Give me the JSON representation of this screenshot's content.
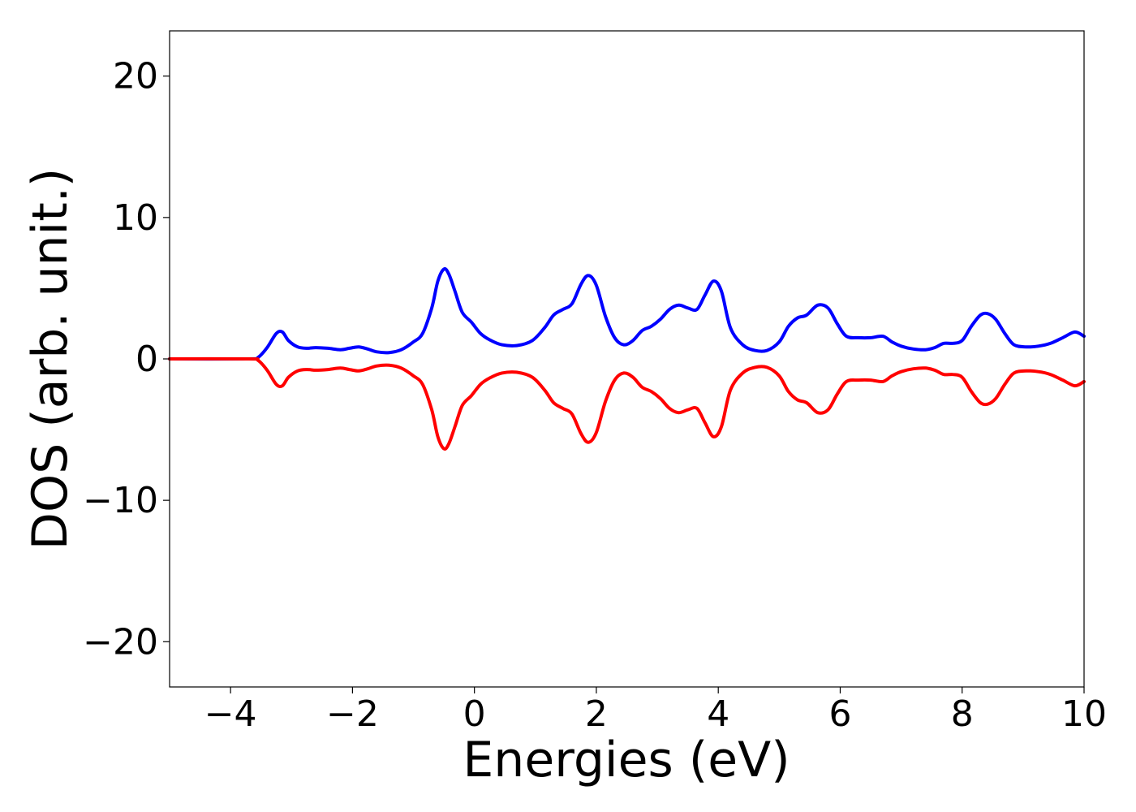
{
  "chart_data": {
    "type": "line",
    "title": "",
    "xlabel": "Energies (eV)",
    "ylabel": "DOS (arb. unit.)",
    "xlim": [
      -5,
      10
    ],
    "ylim": [
      -23.2,
      23.2
    ],
    "xticks": [
      -4,
      -2,
      0,
      2,
      4,
      6,
      8,
      10
    ],
    "xtick_labels": [
      "−4",
      "−2",
      "0",
      "2",
      "4",
      "6",
      "8",
      "10"
    ],
    "yticks": [
      -20,
      -10,
      0,
      10,
      20
    ],
    "ytick_labels": [
      "−20",
      "−10",
      "0",
      "10",
      "20"
    ],
    "grid": false,
    "series": [
      {
        "color": "#0000ff",
        "x": [
          -5.0,
          -3.7,
          -3.55,
          -3.4,
          -3.25,
          -3.15,
          -3.05,
          -2.9,
          -2.75,
          -2.6,
          -2.4,
          -2.2,
          -2.05,
          -1.9,
          -1.75,
          -1.6,
          -1.4,
          -1.2,
          -1.0,
          -0.85,
          -0.7,
          -0.6,
          -0.5,
          -0.42,
          -0.32,
          -0.2,
          -0.05,
          0.1,
          0.25,
          0.45,
          0.7,
          0.95,
          1.15,
          1.3,
          1.45,
          1.6,
          1.75,
          1.87,
          2.0,
          2.15,
          2.3,
          2.45,
          2.6,
          2.75,
          2.9,
          3.05,
          3.2,
          3.35,
          3.5,
          3.65,
          3.78,
          3.92,
          4.05,
          4.2,
          4.4,
          4.6,
          4.8,
          5.0,
          5.15,
          5.3,
          5.45,
          5.63,
          5.8,
          5.95,
          6.1,
          6.3,
          6.5,
          6.7,
          6.85,
          7.0,
          7.2,
          7.4,
          7.55,
          7.7,
          7.85,
          8.0,
          8.15,
          8.3,
          8.42,
          8.55,
          8.7,
          8.85,
          9.05,
          9.25,
          9.45,
          9.65,
          9.85,
          10.0
        ],
        "y": [
          0.0,
          0.0,
          0.1,
          0.8,
          1.8,
          1.9,
          1.3,
          0.85,
          0.75,
          0.8,
          0.75,
          0.65,
          0.75,
          0.85,
          0.7,
          0.5,
          0.45,
          0.65,
          1.2,
          1.8,
          3.6,
          5.5,
          6.35,
          6.0,
          4.8,
          3.3,
          2.6,
          1.8,
          1.35,
          1.0,
          0.95,
          1.3,
          2.2,
          3.1,
          3.5,
          3.9,
          5.3,
          5.9,
          5.2,
          3.0,
          1.5,
          1.0,
          1.3,
          2.0,
          2.3,
          2.8,
          3.5,
          3.8,
          3.6,
          3.5,
          4.5,
          5.5,
          4.8,
          2.2,
          1.0,
          0.6,
          0.6,
          1.2,
          2.3,
          2.9,
          3.1,
          3.8,
          3.6,
          2.5,
          1.6,
          1.5,
          1.5,
          1.6,
          1.2,
          0.9,
          0.7,
          0.65,
          0.8,
          1.1,
          1.1,
          1.3,
          2.3,
          3.1,
          3.2,
          2.8,
          1.8,
          1.0,
          0.85,
          0.9,
          1.1,
          1.5,
          1.9,
          1.6
        ]
      },
      {
        "color": "#ff0000",
        "x": [
          -5.0,
          -3.7,
          -3.55,
          -3.4,
          -3.25,
          -3.15,
          -3.05,
          -2.9,
          -2.75,
          -2.6,
          -2.4,
          -2.2,
          -2.05,
          -1.9,
          -1.75,
          -1.6,
          -1.4,
          -1.2,
          -1.0,
          -0.85,
          -0.7,
          -0.6,
          -0.5,
          -0.42,
          -0.32,
          -0.2,
          -0.05,
          0.1,
          0.25,
          0.45,
          0.7,
          0.95,
          1.15,
          1.3,
          1.45,
          1.6,
          1.75,
          1.87,
          2.0,
          2.15,
          2.3,
          2.45,
          2.6,
          2.75,
          2.9,
          3.05,
          3.2,
          3.35,
          3.5,
          3.65,
          3.78,
          3.92,
          4.05,
          4.2,
          4.4,
          4.6,
          4.8,
          5.0,
          5.15,
          5.3,
          5.45,
          5.63,
          5.8,
          5.95,
          6.1,
          6.3,
          6.5,
          6.7,
          6.85,
          7.0,
          7.2,
          7.4,
          7.55,
          7.7,
          7.85,
          8.0,
          8.15,
          8.3,
          8.42,
          8.55,
          8.7,
          8.85,
          9.05,
          9.25,
          9.45,
          9.65,
          9.85,
          10.0
        ],
        "y": [
          0.0,
          0.0,
          -0.1,
          -0.8,
          -1.8,
          -1.9,
          -1.3,
          -0.85,
          -0.75,
          -0.8,
          -0.75,
          -0.65,
          -0.75,
          -0.85,
          -0.7,
          -0.5,
          -0.45,
          -0.65,
          -1.2,
          -1.8,
          -3.6,
          -5.5,
          -6.35,
          -6.0,
          -4.8,
          -3.3,
          -2.6,
          -1.8,
          -1.35,
          -1.0,
          -0.95,
          -1.3,
          -2.2,
          -3.1,
          -3.5,
          -3.9,
          -5.3,
          -5.9,
          -5.2,
          -3.0,
          -1.5,
          -1.0,
          -1.3,
          -2.0,
          -2.3,
          -2.8,
          -3.5,
          -3.8,
          -3.6,
          -3.5,
          -4.5,
          -5.5,
          -4.8,
          -2.2,
          -1.0,
          -0.6,
          -0.6,
          -1.2,
          -2.3,
          -2.9,
          -3.1,
          -3.8,
          -3.6,
          -2.5,
          -1.6,
          -1.5,
          -1.5,
          -1.6,
          -1.2,
          -0.9,
          -0.7,
          -0.65,
          -0.8,
          -1.1,
          -1.1,
          -1.3,
          -2.3,
          -3.1,
          -3.2,
          -2.8,
          -1.8,
          -1.0,
          -0.85,
          -0.9,
          -1.1,
          -1.5,
          -1.9,
          -1.6
        ]
      }
    ]
  }
}
